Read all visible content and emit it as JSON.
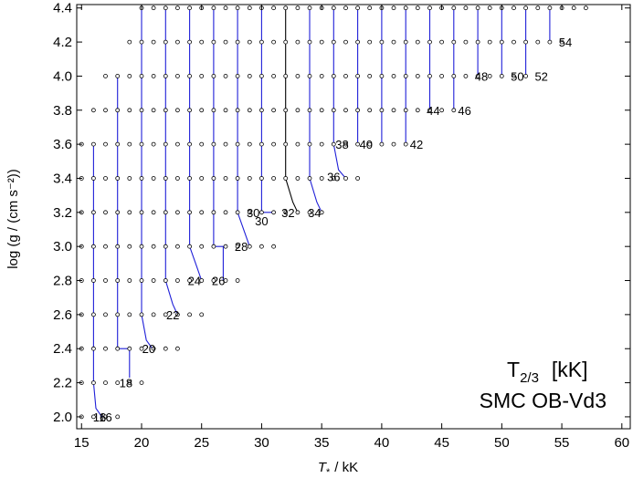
{
  "chart_data": {
    "type": "scatter",
    "title": "",
    "annotation_title": "T",
    "annotation_title_sub": "2/3",
    "annotation_title_unit": "[kK]",
    "annotation_subtitle": "SMC OB-Vd3",
    "xlabel_symbol": "T",
    "xlabel_sub": "*",
    "xlabel_unit": "/ kK",
    "ylabel": "log (g / (cm s⁻²))",
    "xlim": [
      14.6,
      60.7
    ],
    "ylim": [
      1.93,
      4.42
    ],
    "xticks": [
      15,
      20,
      25,
      30,
      35,
      40,
      45,
      50,
      55,
      60
    ],
    "yticks": [
      2.0,
      2.2,
      2.4,
      2.6,
      2.8,
      3.0,
      3.2,
      3.4,
      3.6,
      3.8,
      4.0,
      4.2,
      4.4
    ],
    "ytick_labels": [
      "2.0",
      "2.2",
      "2.4",
      "2.6",
      "2.8",
      "3.0",
      "3.2",
      "3.4",
      "3.6",
      "3.8",
      "4.0",
      "4.2",
      "4.4"
    ],
    "grid": false,
    "grid_points": {
      "series_name": "",
      "marker": "open-circle",
      "rows": [
        {
          "logg": 2.0,
          "teff": [
            15,
            16,
            17,
            18
          ]
        },
        {
          "logg": 2.2,
          "teff": [
            15,
            16,
            17,
            18,
            19,
            20
          ]
        },
        {
          "logg": 2.4,
          "teff": [
            15,
            16,
            17,
            18,
            19,
            20,
            21,
            22,
            23
          ]
        },
        {
          "logg": 2.6,
          "teff": [
            15,
            16,
            17,
            18,
            19,
            20,
            21,
            22,
            23,
            24,
            25
          ]
        },
        {
          "logg": 2.8,
          "teff": [
            15,
            16,
            17,
            18,
            19,
            20,
            21,
            22,
            23,
            24,
            25,
            26,
            27,
            28
          ]
        },
        {
          "logg": 3.0,
          "teff": [
            15,
            16,
            17,
            18,
            19,
            20,
            21,
            22,
            23,
            24,
            25,
            26,
            27,
            28,
            29,
            30,
            31
          ]
        },
        {
          "logg": 3.2,
          "teff": [
            15,
            16,
            17,
            18,
            19,
            20,
            21,
            22,
            23,
            24,
            25,
            26,
            27,
            28,
            29,
            30,
            31,
            32,
            33,
            34,
            35
          ]
        },
        {
          "logg": 3.4,
          "teff": [
            15,
            16,
            17,
            18,
            19,
            20,
            21,
            22,
            23,
            24,
            25,
            26,
            27,
            28,
            29,
            30,
            31,
            32,
            33,
            34,
            35,
            36,
            37,
            38
          ]
        },
        {
          "logg": 3.6,
          "teff": [
            15,
            16,
            17,
            18,
            19,
            20,
            21,
            22,
            23,
            24,
            25,
            26,
            27,
            28,
            29,
            30,
            31,
            32,
            33,
            34,
            35,
            36,
            37,
            38,
            39,
            40,
            41,
            42
          ]
        },
        {
          "logg": 3.8,
          "teff": [
            16,
            17,
            18,
            19,
            20,
            21,
            22,
            23,
            24,
            25,
            26,
            27,
            28,
            29,
            30,
            31,
            32,
            33,
            34,
            35,
            36,
            37,
            38,
            39,
            40,
            41,
            42,
            43,
            44,
            45,
            46
          ]
        },
        {
          "logg": 4.0,
          "teff": [
            17,
            18,
            19,
            20,
            21,
            22,
            23,
            24,
            25,
            26,
            27,
            28,
            29,
            30,
            31,
            32,
            33,
            34,
            35,
            36,
            37,
            38,
            39,
            40,
            41,
            42,
            43,
            44,
            45,
            46,
            47,
            48,
            49,
            50,
            51,
            52
          ]
        },
        {
          "logg": 4.2,
          "teff": [
            19,
            20,
            21,
            22,
            23,
            24,
            25,
            26,
            27,
            28,
            29,
            30,
            31,
            32,
            33,
            34,
            35,
            36,
            37,
            38,
            39,
            40,
            41,
            42,
            43,
            44,
            45,
            46,
            47,
            48,
            49,
            50,
            51,
            52,
            53,
            54,
            55
          ]
        },
        {
          "logg": 4.4,
          "teff": [
            20,
            21,
            22,
            23,
            24,
            25,
            26,
            27,
            28,
            29,
            30,
            31,
            32,
            33,
            34,
            35,
            36,
            37,
            38,
            39,
            40,
            41,
            42,
            43,
            44,
            45,
            46,
            47,
            48,
            49,
            50,
            51,
            52,
            53,
            54,
            55,
            56,
            57
          ]
        }
      ]
    },
    "contours": [
      {
        "level": "16",
        "points": [
          [
            16,
            3.6
          ],
          [
            16,
            2.2
          ],
          [
            16.2,
            2.05
          ],
          [
            16.7,
            2.0
          ]
        ]
      },
      {
        "level": "18",
        "points": [
          [
            18,
            4.0
          ],
          [
            18,
            2.4
          ],
          [
            19,
            2.4
          ],
          [
            19,
            2.23
          ]
        ]
      },
      {
        "level": "20",
        "points": [
          [
            20,
            4.4
          ],
          [
            20,
            2.6
          ],
          [
            20.4,
            2.45
          ],
          [
            20.9,
            2.4
          ]
        ]
      },
      {
        "level": "22",
        "points": [
          [
            22,
            4.4
          ],
          [
            22,
            2.8
          ],
          [
            22.6,
            2.66
          ],
          [
            23.0,
            2.6
          ]
        ]
      },
      {
        "level": "24",
        "points": [
          [
            24,
            4.4
          ],
          [
            24,
            3.0
          ],
          [
            24.6,
            2.88
          ],
          [
            25.0,
            2.8
          ]
        ]
      },
      {
        "level": "26",
        "points": [
          [
            26,
            4.4
          ],
          [
            26,
            3.0
          ],
          [
            26.8,
            3.0
          ],
          [
            26.8,
            2.8
          ]
        ]
      },
      {
        "level": "28",
        "points": [
          [
            28,
            4.4
          ],
          [
            28,
            3.2
          ],
          [
            28.6,
            3.08
          ],
          [
            29.0,
            3.0
          ]
        ]
      },
      {
        "level": "30",
        "points": [
          [
            30,
            4.4
          ],
          [
            30,
            3.2
          ],
          [
            31.0,
            3.2
          ]
        ]
      },
      {
        "level": "32",
        "points": [
          [
            32,
            4.4
          ],
          [
            32,
            3.4
          ],
          [
            32.6,
            3.26
          ],
          [
            33.0,
            3.2
          ]
        ]
      },
      {
        "level": "34",
        "points": [
          [
            34,
            4.4
          ],
          [
            34,
            3.4
          ],
          [
            34.6,
            3.26
          ],
          [
            35.0,
            3.2
          ]
        ]
      },
      {
        "level": "36",
        "points": [
          [
            36,
            4.4
          ],
          [
            36,
            3.6
          ],
          [
            36.4,
            3.45
          ],
          [
            37.0,
            3.4
          ]
        ]
      },
      {
        "level": "38",
        "points": [
          [
            38,
            4.4
          ],
          [
            38,
            3.6
          ]
        ]
      },
      {
        "level": "40",
        "points": [
          [
            40,
            4.4
          ],
          [
            40,
            3.6
          ]
        ]
      },
      {
        "level": "42",
        "points": [
          [
            42,
            4.4
          ],
          [
            42,
            3.6
          ]
        ]
      },
      {
        "level": "44",
        "points": [
          [
            44,
            4.4
          ],
          [
            44,
            3.8
          ]
        ]
      },
      {
        "level": "46",
        "points": [
          [
            46,
            4.4
          ],
          [
            46,
            3.8
          ]
        ]
      },
      {
        "level": "48",
        "points": [
          [
            48,
            4.4
          ],
          [
            48,
            4.0
          ]
        ]
      },
      {
        "level": "50",
        "points": [
          [
            50,
            4.4
          ],
          [
            50,
            4.0
          ]
        ]
      },
      {
        "level": "52",
        "points": [
          [
            52,
            4.4
          ],
          [
            52,
            4.0
          ]
        ]
      },
      {
        "level": "54",
        "points": [
          [
            54,
            4.4
          ],
          [
            54,
            4.2
          ]
        ]
      }
    ],
    "contour_labels": [
      {
        "text": "16",
        "x": 16.5,
        "y": 2.0
      },
      {
        "text": "16",
        "x": 17.0,
        "y": 2.0
      },
      {
        "text": "18",
        "x": 18.7,
        "y": 2.2
      },
      {
        "text": "20",
        "x": 20.6,
        "y": 2.4
      },
      {
        "text": "22",
        "x": 22.6,
        "y": 2.6
      },
      {
        "text": "24",
        "x": 24.4,
        "y": 2.8
      },
      {
        "text": "26",
        "x": 26.4,
        "y": 2.8
      },
      {
        "text": "28",
        "x": 28.3,
        "y": 3.0
      },
      {
        "text": "30",
        "x": 29.3,
        "y": 3.2
      },
      {
        "text": "30",
        "x": 30.0,
        "y": 3.15
      },
      {
        "text": "32",
        "x": 32.2,
        "y": 3.2
      },
      {
        "text": "34",
        "x": 34.4,
        "y": 3.2
      },
      {
        "text": "36",
        "x": 36.0,
        "y": 3.41
      },
      {
        "text": "38",
        "x": 36.7,
        "y": 3.6
      },
      {
        "text": "40",
        "x": 38.7,
        "y": 3.6
      },
      {
        "text": "42",
        "x": 42.9,
        "y": 3.6
      },
      {
        "text": "44",
        "x": 44.3,
        "y": 3.8
      },
      {
        "text": "46",
        "x": 46.9,
        "y": 3.8
      },
      {
        "text": "48",
        "x": 48.3,
        "y": 4.0
      },
      {
        "text": "50",
        "x": 51.3,
        "y": 4.0
      },
      {
        "text": "52",
        "x": 53.3,
        "y": 4.0
      },
      {
        "text": "54",
        "x": 55.3,
        "y": 4.2
      }
    ],
    "colors": {
      "contour": "#1f1fd8",
      "contour_black": "#000000",
      "marker_edge": "#000000",
      "axes": "#000000"
    }
  }
}
